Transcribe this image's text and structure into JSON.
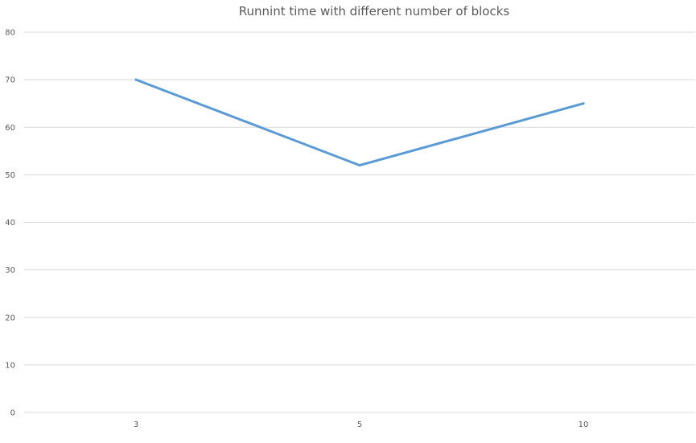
{
  "chart_data": {
    "type": "line",
    "title": "Runnint time with different number of blocks",
    "xlabel": "",
    "ylabel": "",
    "categories": [
      "3",
      "5",
      "10"
    ],
    "series": [
      {
        "values": [
          70,
          52,
          65
        ]
      }
    ],
    "ylim": [
      0,
      80
    ],
    "yticks": [
      0,
      10,
      20,
      30,
      40,
      50,
      60,
      70,
      80
    ],
    "grid": true,
    "legend": "none",
    "colors": {
      "series": "#5b9bd5",
      "grid": "#d9d9d9",
      "text": "#595959"
    }
  }
}
